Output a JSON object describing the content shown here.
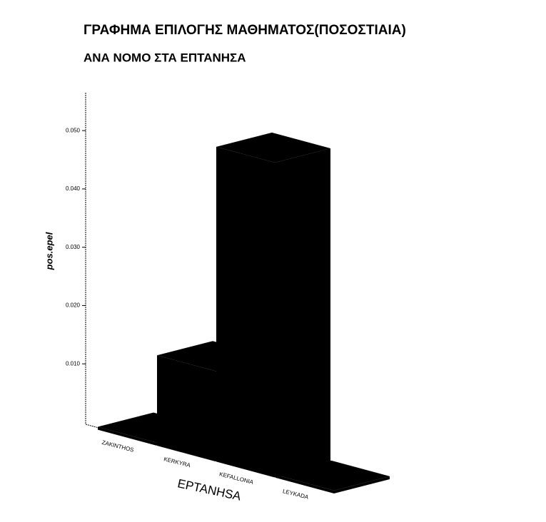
{
  "chart_data": {
    "type": "bar3d",
    "title": "ΓΡΑΦΗΜΑ ΕΠΙΛΟΓΗΣ ΜΑΘΗΜΑΤΟΣ(ΠΟΣΟΣΤΙΑΙΑ)",
    "subtitle": "ΑΝΑ ΝΟΜΟ ΣΤΑ ΕΠΤΑΝΗΣΑ",
    "x_label": "EPTANHSA",
    "y_label": "pos.epel",
    "categories": [
      "ZAKINTHOS",
      "KERKYRA",
      "KEFALLONIA",
      "LEYKADA"
    ],
    "values": [
      0.0005,
      0.0155,
      0.054,
      0.0005
    ],
    "color": "#000000",
    "ylim": [
      0,
      0.0565
    ],
    "yticks": [
      {
        "value": 0.01,
        "label": "0.010"
      },
      {
        "value": 0.02,
        "label": "0.020"
      },
      {
        "value": 0.03,
        "label": "0.030"
      },
      {
        "value": 0.04,
        "label": "0.040"
      },
      {
        "value": 0.05,
        "label": "0.050"
      }
    ]
  }
}
